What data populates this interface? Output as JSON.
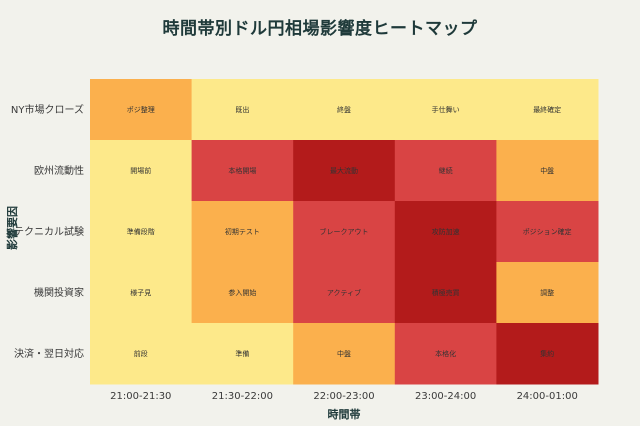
{
  "title": "時間帯別ドル円相場影響度ヒートマップ",
  "chart_data": {
    "type": "heatmap",
    "title": "時間帯別ドル円相場影響度ヒートマップ",
    "xlabel": "時間帯",
    "ylabel": "影響要因",
    "x_categories": [
      "21:00-21:30",
      "21:30-22:00",
      "22:00-23:00",
      "23:00-24:00",
      "24:00-01:00"
    ],
    "y_categories": [
      "NY市場クローズ",
      "欧州流動性",
      "テクニカル試験",
      "機関投資家",
      "決済・翌日対応"
    ],
    "levels_colors": {
      "1": "#fde98a",
      "2": "#fbb04d",
      "3": "#d94444",
      "4": "#b31b1b"
    },
    "cells": [
      [
        {
          "label": "ポジ整理",
          "level": 2
        },
        {
          "label": "既出",
          "level": 1
        },
        {
          "label": "終盤",
          "level": 1
        },
        {
          "label": "手仕舞い",
          "level": 1
        },
        {
          "label": "最終確定",
          "level": 1
        }
      ],
      [
        {
          "label": "開場前",
          "level": 1
        },
        {
          "label": "本格開場",
          "level": 3
        },
        {
          "label": "最大流動",
          "level": 4
        },
        {
          "label": "継続",
          "level": 3
        },
        {
          "label": "中盤",
          "level": 2
        }
      ],
      [
        {
          "label": "準備段階",
          "level": 1
        },
        {
          "label": "初期テスト",
          "level": 2
        },
        {
          "label": "ブレークアウト",
          "level": 3
        },
        {
          "label": "攻防加速",
          "level": 4
        },
        {
          "label": "ポジション確定",
          "level": 3
        }
      ],
      [
        {
          "label": "様子見",
          "level": 1
        },
        {
          "label": "参入開始",
          "level": 2
        },
        {
          "label": "アクティブ",
          "level": 3
        },
        {
          "label": "積極売買",
          "level": 4
        },
        {
          "label": "調整",
          "level": 2
        }
      ],
      [
        {
          "label": "前段",
          "level": 1
        },
        {
          "label": "準備",
          "level": 1
        },
        {
          "label": "中盤",
          "level": 2
        },
        {
          "label": "本格化",
          "level": 3
        },
        {
          "label": "集約",
          "level": 4
        }
      ]
    ]
  }
}
